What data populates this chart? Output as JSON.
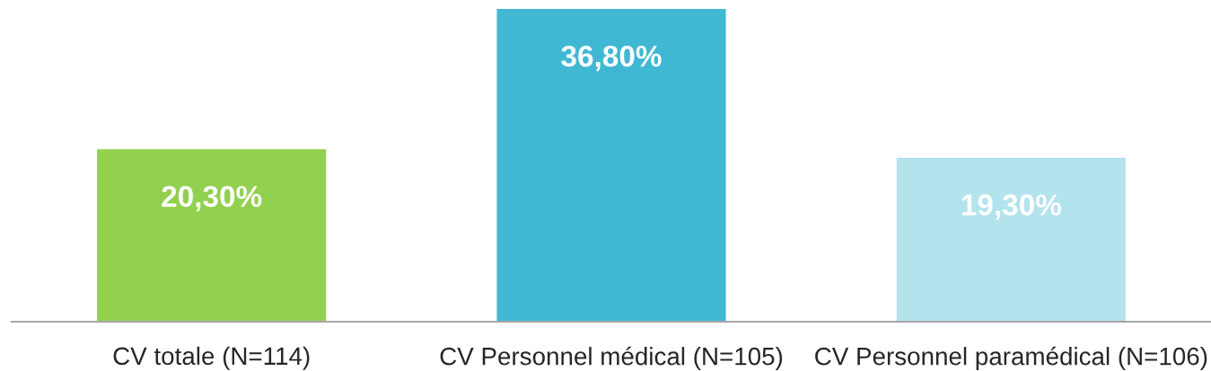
{
  "chart_data": {
    "type": "bar",
    "categories": [
      "CV totale (N=114)",
      "CV Personnel médical (N=105)",
      "CV Personnel paramédical (N=106)"
    ],
    "values": [
      20.3,
      36.8,
      19.3
    ],
    "colors": [
      "#92d050",
      "#41b8d3",
      "#b3e3ed"
    ],
    "value_labels": [
      "20,30%",
      "36,80%",
      "19,30%"
    ],
    "tick_labels": "x"
  }
}
